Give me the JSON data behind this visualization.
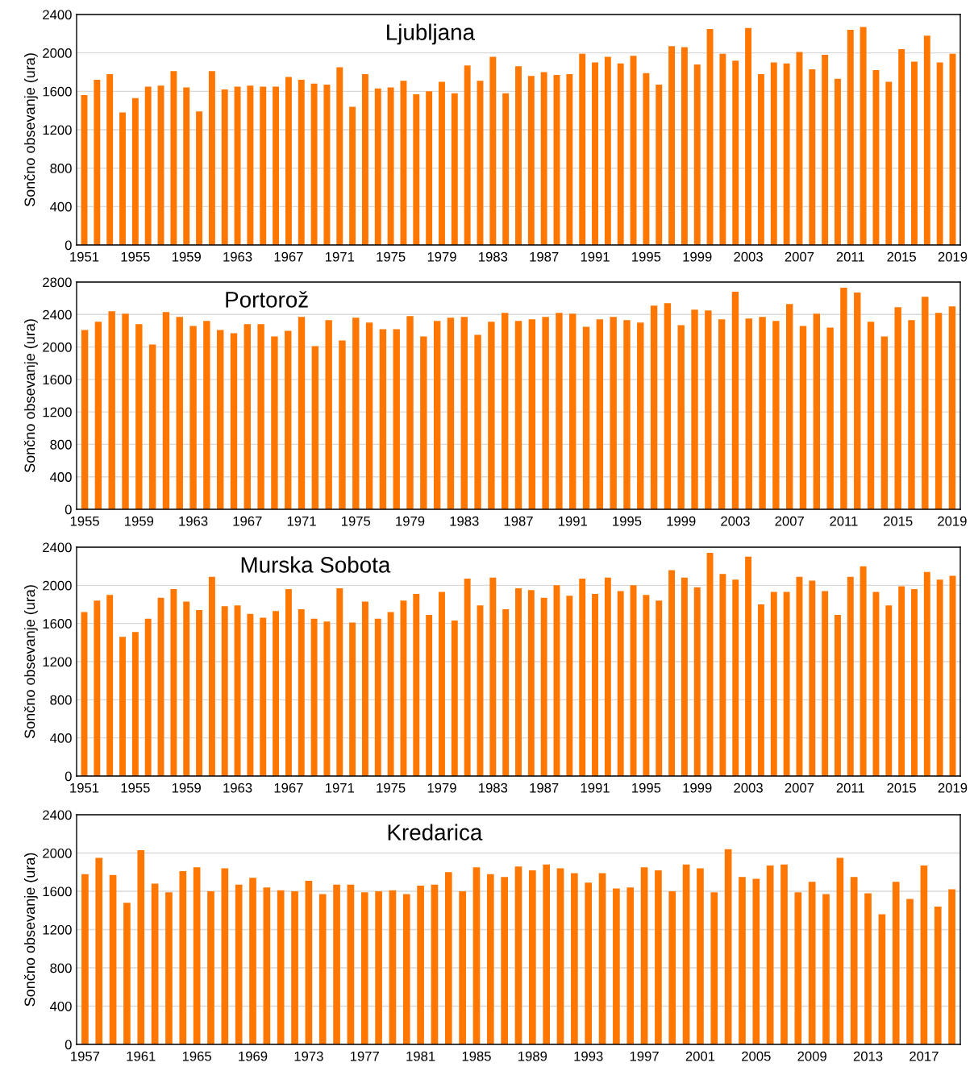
{
  "chart_data": [
    {
      "type": "bar",
      "title": "Ljubljana",
      "ylabel": "Sončno obsevanje (ura)",
      "color": "#ff7700",
      "grid": "y",
      "ylim": [
        0,
        2400
      ],
      "yticks": [
        0,
        400,
        800,
        1200,
        1600,
        2000,
        2400
      ],
      "categories": [
        "1951",
        null,
        null,
        null,
        "1955",
        null,
        null,
        null,
        "1959",
        null,
        null,
        null,
        "1963",
        null,
        null,
        null,
        "1967",
        null,
        null,
        null,
        "1971",
        null,
        null,
        null,
        "1975",
        null,
        null,
        null,
        "1979",
        null,
        null,
        null,
        "1983",
        null,
        null,
        null,
        "1987",
        null,
        null,
        null,
        "1991",
        null,
        null,
        null,
        "1995",
        null,
        null,
        null,
        "1999",
        null,
        null,
        null,
        "2003",
        null,
        null,
        null,
        "2007",
        null,
        null,
        null,
        "2011",
        null,
        null,
        null,
        "2015",
        null,
        null,
        null,
        "2019"
      ],
      "values": [
        1560,
        1720,
        1780,
        1380,
        1530,
        1650,
        1660,
        1810,
        1640,
        1390,
        1810,
        1620,
        1650,
        1660,
        1650,
        1650,
        1750,
        1720,
        1680,
        1670,
        1850,
        1440,
        1780,
        1630,
        1640,
        1710,
        1570,
        1600,
        1700,
        1580,
        1870,
        1710,
        1960,
        1580,
        1860,
        1760,
        1800,
        1770,
        1780,
        1990,
        1900,
        1960,
        1890,
        1970,
        1790,
        1670,
        2070,
        2060,
        1880,
        2250,
        1990,
        1920,
        2260,
        1780,
        1900,
        1890,
        2010,
        1830,
        1980,
        1730,
        2240,
        2270,
        1820,
        1700,
        2040,
        1910,
        2180,
        1900,
        1990
      ]
    },
    {
      "type": "bar",
      "title": "Portorož",
      "ylabel": "Sončno obsevanje (ura)",
      "color": "#ff7700",
      "grid": "y",
      "ylim": [
        0,
        2800
      ],
      "yticks": [
        0,
        400,
        800,
        1200,
        1600,
        2000,
        2400,
        2800
      ],
      "categories": [
        "1955",
        null,
        null,
        null,
        "1959",
        null,
        null,
        null,
        "1963",
        null,
        null,
        null,
        "1967",
        null,
        null,
        null,
        "1971",
        null,
        null,
        null,
        "1975",
        null,
        null,
        null,
        "1979",
        null,
        null,
        null,
        "1983",
        null,
        null,
        null,
        "1987",
        null,
        null,
        null,
        "1991",
        null,
        null,
        null,
        "1995",
        null,
        null,
        null,
        "1999",
        null,
        null,
        null,
        "2003",
        null,
        null,
        null,
        "2007",
        null,
        null,
        null,
        "2011",
        null,
        null,
        null,
        "2015",
        null,
        null,
        null,
        "2019"
      ],
      "values": [
        2210,
        2310,
        2440,
        2410,
        2280,
        2030,
        2430,
        2370,
        2260,
        2320,
        2210,
        2170,
        2280,
        2280,
        2130,
        2200,
        2370,
        2010,
        2330,
        2080,
        2360,
        2300,
        2220,
        2220,
        2380,
        2130,
        2320,
        2360,
        2370,
        2150,
        2310,
        2420,
        2320,
        2340,
        2370,
        2420,
        2410,
        2250,
        2340,
        2370,
        2330,
        2300,
        2510,
        2540,
        2270,
        2460,
        2450,
        2340,
        2680,
        2350,
        2370,
        2320,
        2530,
        2260,
        2410,
        2240,
        2730,
        2670,
        2310,
        2130,
        2490,
        2330,
        2620,
        2420,
        2500
      ]
    },
    {
      "type": "bar",
      "title": "Murska Sobota",
      "ylabel": "Sončno obsevanje (ura)",
      "color": "#ff7700",
      "grid": "y",
      "ylim": [
        0,
        2400
      ],
      "yticks": [
        0,
        400,
        800,
        1200,
        1600,
        2000,
        2400
      ],
      "categories": [
        "1951",
        null,
        null,
        null,
        "1955",
        null,
        null,
        null,
        "1959",
        null,
        null,
        null,
        "1963",
        null,
        null,
        null,
        "1967",
        null,
        null,
        null,
        "1971",
        null,
        null,
        null,
        "1975",
        null,
        null,
        null,
        "1979",
        null,
        null,
        null,
        "1983",
        null,
        null,
        null,
        "1987",
        null,
        null,
        null,
        "1991",
        null,
        null,
        null,
        "1995",
        null,
        null,
        null,
        "1999",
        null,
        null,
        null,
        "2003",
        null,
        null,
        null,
        "2007",
        null,
        null,
        null,
        "2011",
        null,
        null,
        null,
        "2015",
        null,
        null,
        null,
        "2019"
      ],
      "values": [
        1720,
        1840,
        1900,
        1460,
        1510,
        1650,
        1870,
        1960,
        1830,
        1740,
        2090,
        1780,
        1790,
        1700,
        1660,
        1730,
        1960,
        1750,
        1650,
        1620,
        1970,
        1610,
        1830,
        1650,
        1720,
        1840,
        1910,
        1690,
        1930,
        1630,
        2070,
        1790,
        2080,
        1750,
        1970,
        1950,
        1870,
        2000,
        1890,
        2070,
        1910,
        2080,
        1940,
        2000,
        1900,
        1840,
        2160,
        2080,
        1980,
        2340,
        2120,
        2060,
        2300,
        1800,
        1930,
        1930,
        2090,
        2050,
        1940,
        1690,
        2090,
        2200,
        1930,
        1790,
        1990,
        1960,
        2140,
        2060,
        2100
      ]
    },
    {
      "type": "bar",
      "title": "Kredarica",
      "ylabel": "Sončno obsevanje (ura)",
      "color": "#ff7700",
      "grid": "y",
      "ylim": [
        0,
        2400
      ],
      "yticks": [
        0,
        400,
        800,
        1200,
        1600,
        2000,
        2400
      ],
      "categories": [
        "1957",
        null,
        null,
        null,
        "1961",
        null,
        null,
        null,
        "1965",
        null,
        null,
        null,
        "1969",
        null,
        null,
        null,
        "1973",
        null,
        null,
        null,
        "1977",
        null,
        null,
        null,
        "1981",
        null,
        null,
        null,
        "1985",
        null,
        null,
        null,
        "1989",
        null,
        null,
        null,
        "1993",
        null,
        null,
        null,
        "1997",
        null,
        null,
        null,
        "2001",
        null,
        null,
        null,
        "2005",
        null,
        null,
        null,
        "2009",
        null,
        null,
        null,
        "2013",
        null,
        null,
        null,
        "2017",
        null,
        null
      ],
      "values": [
        1780,
        1950,
        1770,
        1480,
        2030,
        1680,
        1590,
        1810,
        1850,
        1600,
        1840,
        1670,
        1740,
        1640,
        1610,
        1600,
        1710,
        1570,
        1670,
        1670,
        1590,
        1600,
        1610,
        1570,
        1660,
        1670,
        1800,
        1600,
        1850,
        1780,
        1750,
        1860,
        1820,
        1880,
        1840,
        1790,
        1690,
        1790,
        1630,
        1640,
        1850,
        1820,
        1600,
        1880,
        1840,
        1590,
        2040,
        1750,
        1730,
        1870,
        1880,
        1590,
        1700,
        1570,
        1950,
        1750,
        1580,
        1360,
        1700,
        1520,
        1870,
        1440,
        1620
      ]
    }
  ]
}
